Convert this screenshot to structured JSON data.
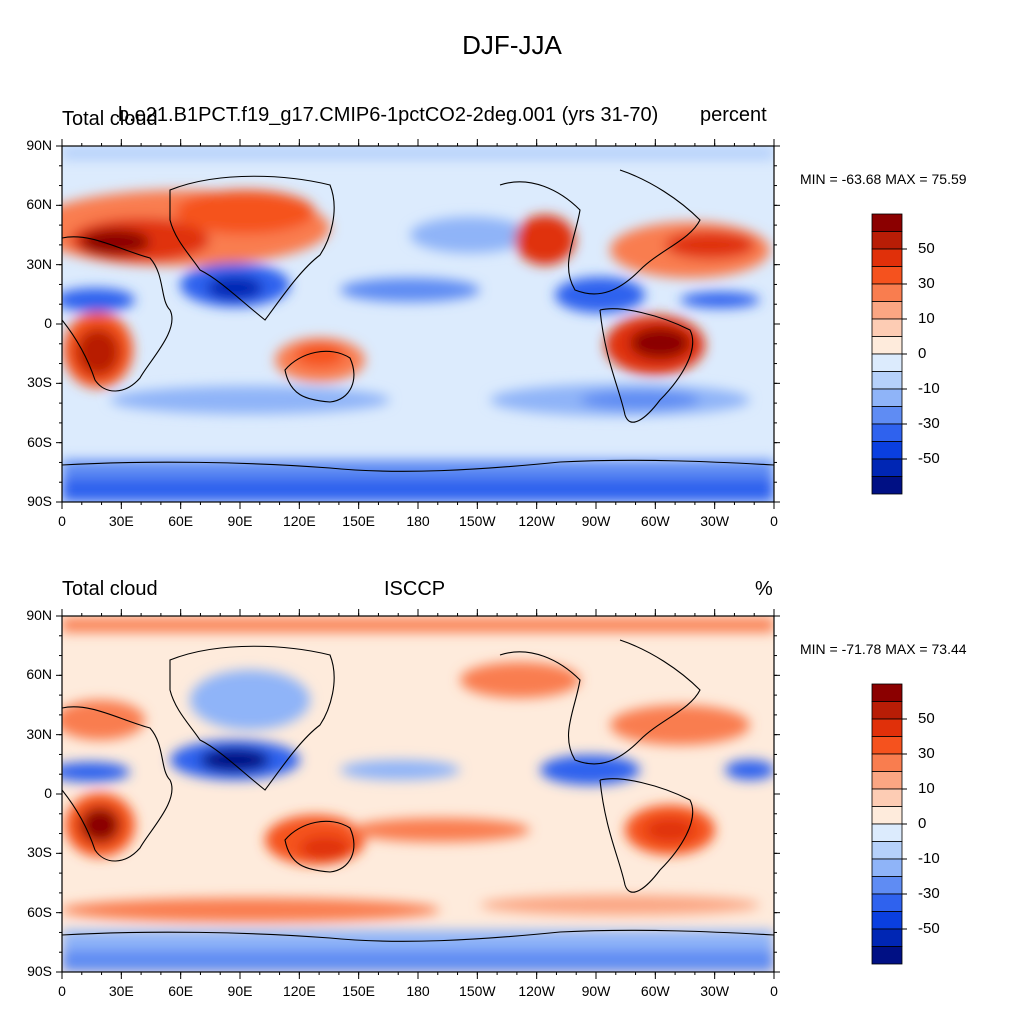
{
  "title": "DJF-JJA",
  "panels": [
    {
      "left_title": "Total cloud",
      "center_title": "b.e21.B1PCT.f19_g17.CMIP6-1pctCO2-2deg.001 (yrs 31-70)",
      "right_title": "percent",
      "min_max": "MIN = -63.68 MAX =  75.59"
    },
    {
      "left_title": "Total cloud",
      "center_title": "ISCCP",
      "right_title": "%",
      "min_max": "MIN = -71.78 MAX =  73.44"
    }
  ],
  "lat_ticks": [
    "90N",
    "60N",
    "30N",
    "0",
    "30S",
    "60S",
    "90S"
  ],
  "lon_ticks": [
    "0",
    "30E",
    "60E",
    "90E",
    "120E",
    "150E",
    "180",
    "150W",
    "120W",
    "90W",
    "60W",
    "30W",
    "0"
  ],
  "colorbar": {
    "labels": [
      "50",
      "30",
      "10",
      "0",
      "-10",
      "-30",
      "-50"
    ],
    "colors": [
      "#8B0000",
      "#B81D06",
      "#E0300A",
      "#F5521E",
      "#F97D4F",
      "#FBA683",
      "#FDCCB4",
      "#FEEBDC",
      "#DCEBFD",
      "#B6D1FB",
      "#8FB4F8",
      "#5F8CF3",
      "#2F62EE",
      "#0A3FE0",
      "#0026B4",
      "#001084"
    ]
  }
}
